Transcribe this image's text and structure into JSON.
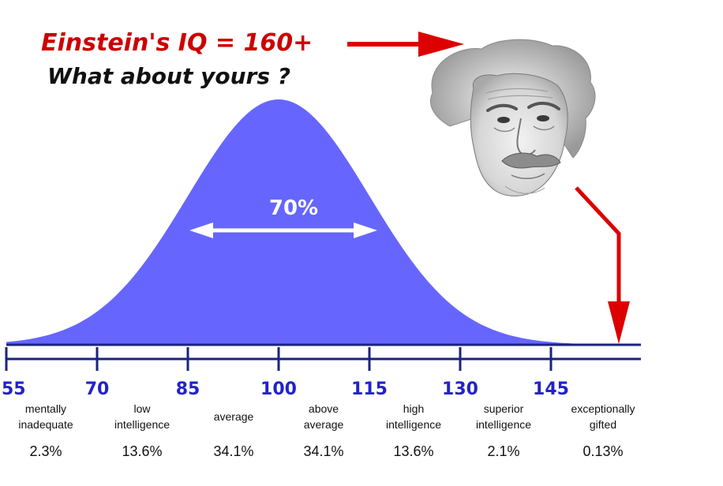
{
  "header": {
    "line1": "Einstein's IQ = 160+",
    "line2": "What about yours ?"
  },
  "portrait": {
    "subject": "Einstein portrait"
  },
  "center_label": "70%",
  "chart_data": {
    "type": "area",
    "title": "",
    "xlabel": "",
    "ylabel": "",
    "distribution": "normal",
    "mean": 100,
    "sd": 15,
    "xlim": [
      55,
      160
    ],
    "ticks": [
      "55",
      "70",
      "85",
      "100",
      "115",
      "130",
      "145"
    ],
    "highlight_range": [
      85,
      115
    ],
    "highlight_label": "70%",
    "pointer_value": 160,
    "categories": [
      {
        "line1": "mentally",
        "line2": "inadequate",
        "percent": "2.3%"
      },
      {
        "line1": "low",
        "line2": "intelligence",
        "percent": "13.6%"
      },
      {
        "line1": "average",
        "line2": "",
        "percent": "34.1%"
      },
      {
        "line1": "above",
        "line2": "average",
        "percent": "34.1%"
      },
      {
        "line1": "high",
        "line2": "intelligence",
        "percent": "13.6%"
      },
      {
        "line1": "superior",
        "line2": "intelligence",
        "percent": "2.1%"
      },
      {
        "line1": "exceptionally",
        "line2": "gifted",
        "percent": "0.13%"
      }
    ]
  },
  "colors": {
    "curve_fill": "#6666ff",
    "axis": "#1a237e",
    "tick_text": "#2222cc",
    "arrow_red": "#dd0000",
    "headline_red": "#cc0000",
    "headline_black": "#111111",
    "double_arrow": "#ffffff"
  }
}
